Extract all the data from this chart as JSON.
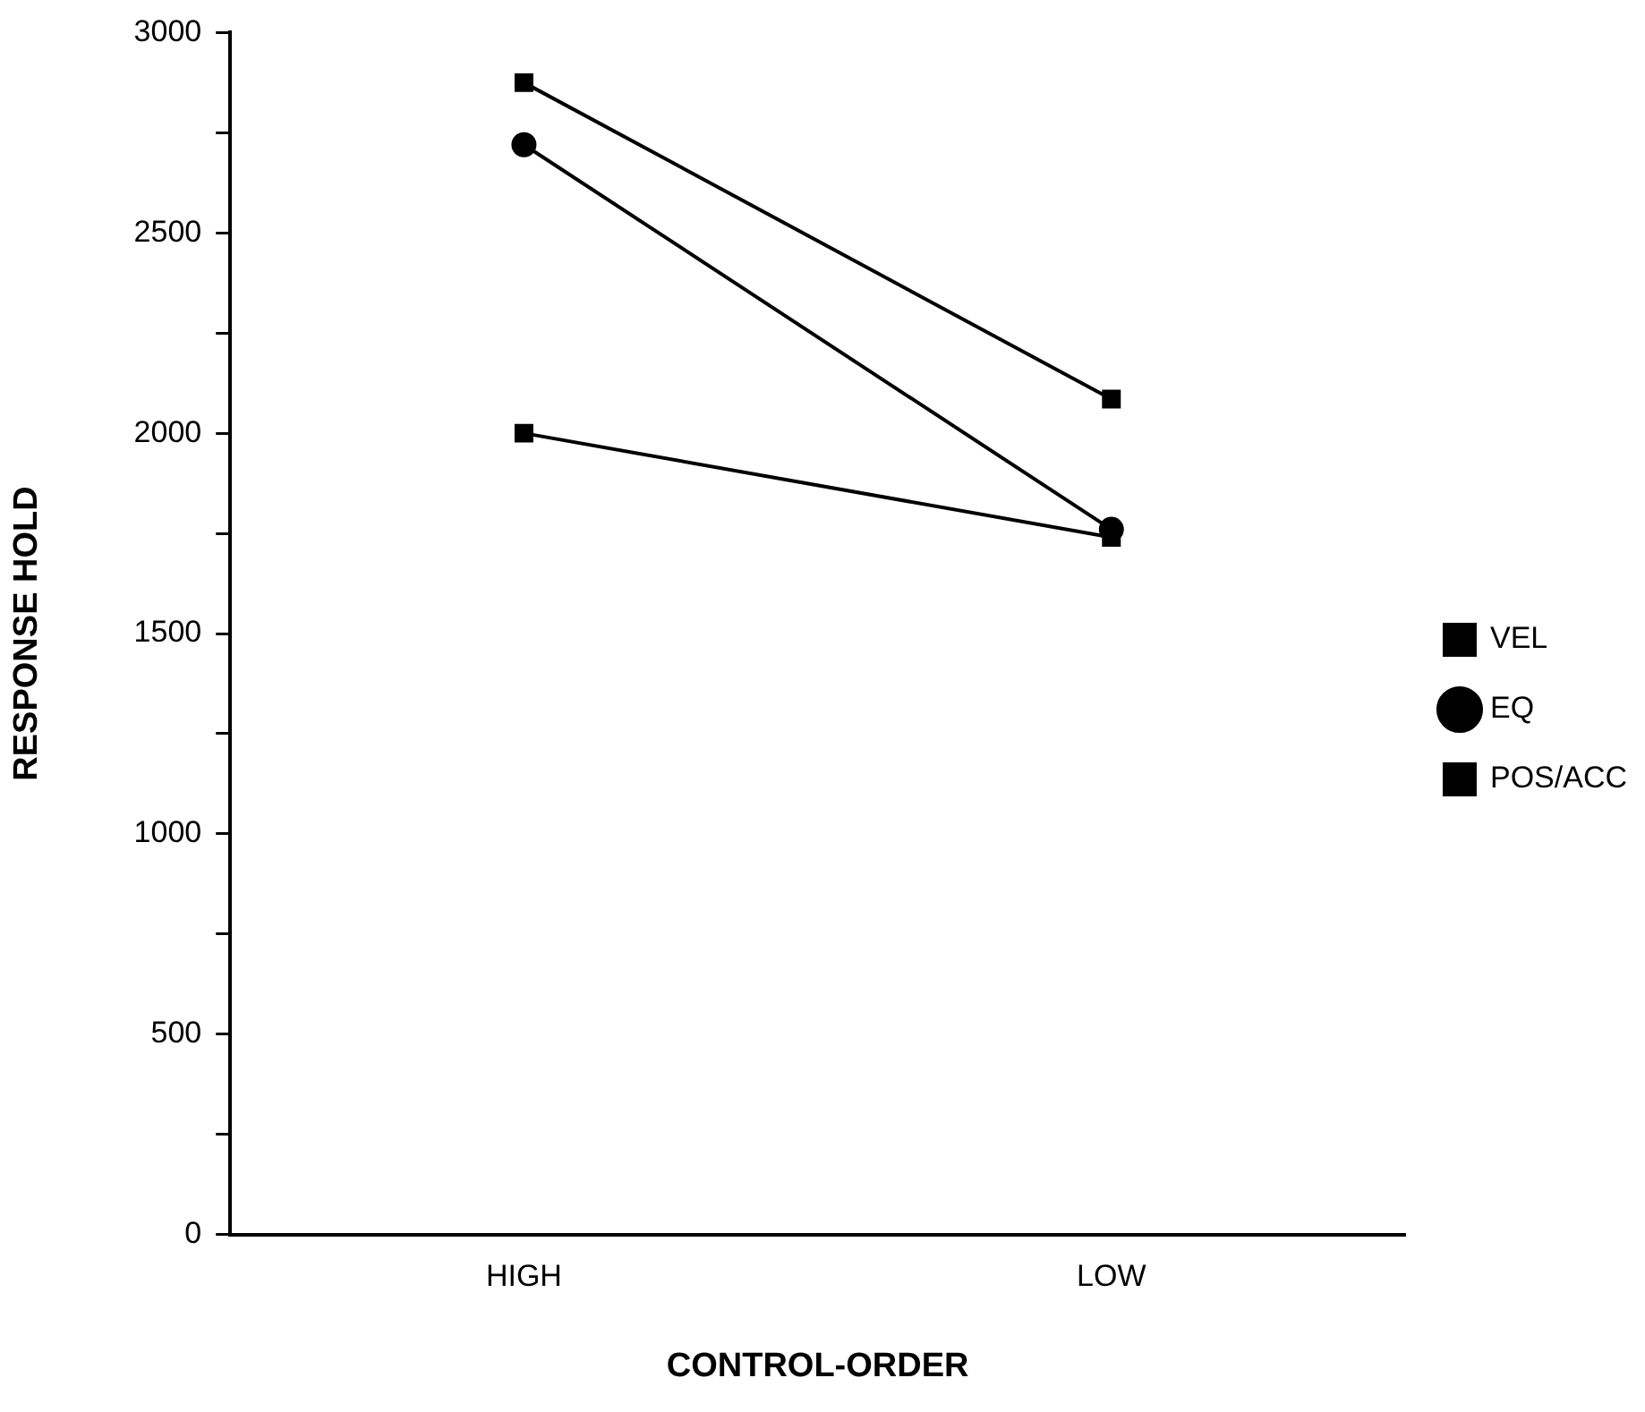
{
  "chart_data": {
    "type": "line",
    "xlabel": "CONTROL-ORDER",
    "ylabel": "RESPONSE HOLD",
    "categories": [
      "HIGH",
      "LOW"
    ],
    "series": [
      {
        "name": "VEL",
        "color": "#000000",
        "marker": "square",
        "values": [
          2000,
          1740
        ]
      },
      {
        "name": "EQ",
        "color": "#000000",
        "marker": "circle",
        "values": [
          2720,
          1760
        ]
      },
      {
        "name": "POS/ACC",
        "color": "#000000",
        "marker": "square",
        "values": [
          2875,
          2085
        ]
      }
    ],
    "ylim": [
      0,
      3000
    ],
    "yticks": [
      0,
      {
        "value": 250,
        "label": null
      },
      500,
      {
        "value": 750,
        "label": null
      },
      1000,
      {
        "value": 1250,
        "label": null
      },
      1500,
      {
        "value": 1750,
        "label": null
      },
      2000,
      {
        "value": 2250,
        "label": null
      },
      2500,
      {
        "value": 2750,
        "label": null
      },
      3000
    ],
    "grid": false,
    "legend": "right",
    "line_style": "solid"
  }
}
